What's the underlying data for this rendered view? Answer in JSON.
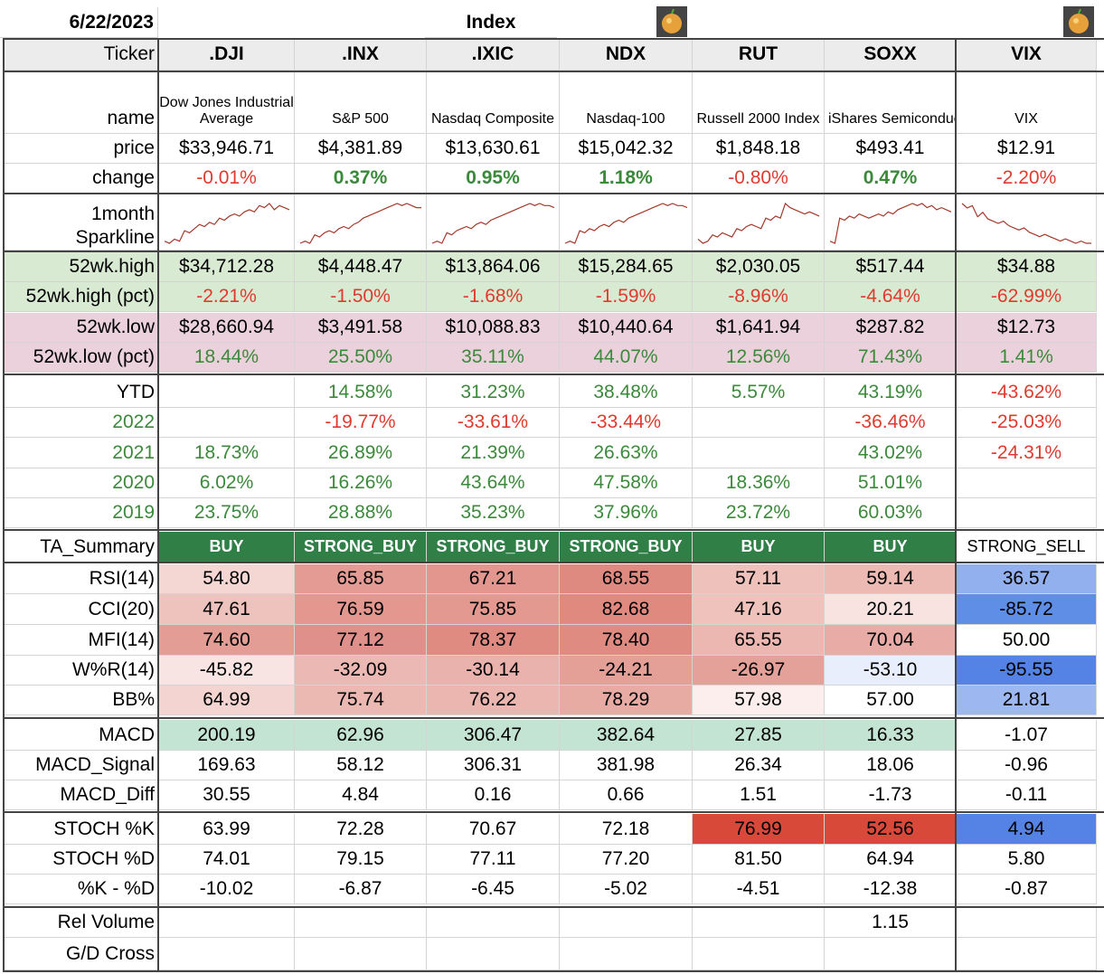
{
  "date": "6/22/2023",
  "section_title": "Index",
  "row_labels": {
    "ticker": "Ticker",
    "name": "name",
    "price": "price",
    "change": "change",
    "spark": [
      "1month",
      "Sparkline"
    ],
    "high": "52wk.high",
    "high_pct": "52wk.high (pct)",
    "low": "52wk.low",
    "low_pct": "52wk.low (pct)",
    "ytd": "YTD",
    "y2022": "2022",
    "y2021": "2021",
    "y2020": "2020",
    "y2019": "2019",
    "ta": "TA_Summary",
    "rsi": "RSI(14)",
    "cci": "CCI(20)",
    "mfi": "MFI(14)",
    "wr": "W%R(14)",
    "bb": "BB%",
    "macd": "MACD",
    "macd_signal": "MACD_Signal",
    "macd_diff": "MACD_Diff",
    "stoch_k": "STOCH %K",
    "stoch_d": "STOCH %D",
    "kd": "%K - %D",
    "relvol": "Rel Volume",
    "gd": "G/D Cross"
  },
  "tickers": [
    {
      "ticker": ".DJI",
      "name": "Dow Jones Industrial Average",
      "price": "$33,946.71",
      "change": "-0.01%",
      "high": "$34,712.28",
      "high_pct": "-2.21%",
      "low": "$28,660.94",
      "low_pct": "18.44%",
      "ytd": "",
      "y2022": "",
      "y2021": "18.73%",
      "y2020": "6.02%",
      "y2019": "23.75%",
      "ta": "BUY",
      "rsi": "54.80",
      "cci": "47.61",
      "mfi": "74.60",
      "wr": "-45.82",
      "bb": "64.99",
      "macd": "200.19",
      "macd_signal": "169.63",
      "macd_diff": "30.55",
      "stoch_k": "63.99",
      "stoch_d": "74.01",
      "kd": "-10.02",
      "relvol": "",
      "gd": "",
      "spark": [
        3,
        2,
        4,
        3,
        8,
        7,
        9,
        11,
        10,
        12,
        11,
        14,
        13,
        15,
        16,
        15,
        17,
        18,
        17,
        20,
        19,
        21,
        18,
        20,
        19,
        18
      ]
    },
    {
      "ticker": ".INX",
      "name": "S&P 500",
      "price": "$4,381.89",
      "change": "0.37%",
      "high": "$4,448.47",
      "high_pct": "-1.50%",
      "low": "$3,491.58",
      "low_pct": "25.50%",
      "ytd": "14.58%",
      "y2022": "-19.77%",
      "y2021": "26.89%",
      "y2020": "16.26%",
      "y2019": "28.88%",
      "ta": "STRONG_BUY",
      "rsi": "65.85",
      "cci": "76.59",
      "mfi": "77.12",
      "wr": "-32.09",
      "bb": "75.74",
      "macd": "62.96",
      "macd_signal": "58.12",
      "macd_diff": "4.84",
      "stoch_k": "72.28",
      "stoch_d": "79.15",
      "kd": "-6.87",
      "relvol": "",
      "gd": "",
      "spark": [
        2,
        3,
        2,
        6,
        5,
        7,
        8,
        7,
        9,
        10,
        9,
        11,
        12,
        14,
        15,
        16,
        17,
        18,
        19,
        20,
        21,
        20,
        21,
        20,
        19,
        19
      ]
    },
    {
      "ticker": ".IXIC",
      "name": "Nasdaq Composite",
      "price": "$13,630.61",
      "change": "0.95%",
      "high": "$13,864.06",
      "high_pct": "-1.68%",
      "low": "$10,088.83",
      "low_pct": "35.11%",
      "ytd": "31.23%",
      "y2022": "-33.61%",
      "y2021": "21.39%",
      "y2020": "43.64%",
      "y2019": "35.23%",
      "ta": "STRONG_BUY",
      "rsi": "67.21",
      "cci": "75.85",
      "mfi": "78.37",
      "wr": "-30.14",
      "bb": "76.22",
      "macd": "306.47",
      "macd_signal": "306.31",
      "macd_diff": "0.16",
      "stoch_k": "70.67",
      "stoch_d": "77.11",
      "kd": "-6.45",
      "relvol": "",
      "gd": "",
      "spark": [
        2,
        3,
        2,
        7,
        6,
        8,
        9,
        10,
        9,
        11,
        12,
        11,
        13,
        14,
        15,
        16,
        17,
        18,
        19,
        20,
        21,
        20,
        21,
        20,
        20,
        19
      ]
    },
    {
      "ticker": "NDX",
      "name": "Nasdaq-100",
      "price": "$15,042.32",
      "change": "1.18%",
      "high": "$15,284.65",
      "high_pct": "-1.59%",
      "low": "$10,440.64",
      "low_pct": "44.07%",
      "ytd": "38.48%",
      "y2022": "-33.44%",
      "y2021": "26.63%",
      "y2020": "47.58%",
      "y2019": "37.96%",
      "ta": "STRONG_BUY",
      "rsi": "68.55",
      "cci": "82.68",
      "mfi": "78.40",
      "wr": "-24.21",
      "bb": "78.29",
      "macd": "382.64",
      "macd_signal": "381.98",
      "macd_diff": "0.66",
      "stoch_k": "72.18",
      "stoch_d": "77.20",
      "kd": "-5.02",
      "relvol": "",
      "gd": "",
      "spark": [
        2,
        3,
        2,
        8,
        7,
        9,
        8,
        10,
        11,
        10,
        12,
        13,
        12,
        14,
        15,
        16,
        17,
        18,
        19,
        20,
        21,
        20,
        21,
        20,
        20,
        19
      ]
    },
    {
      "ticker": "RUT",
      "name": "Russell 2000 Index",
      "price": "$1,848.18",
      "change": "-0.80%",
      "high": "$2,030.05",
      "high_pct": "-8.96%",
      "low": "$1,641.94",
      "low_pct": "12.56%",
      "ytd": "5.57%",
      "y2022": "",
      "y2021": "",
      "y2020": "18.36%",
      "y2019": "23.72%",
      "ta": "BUY",
      "rsi": "57.11",
      "cci": "47.16",
      "mfi": "65.55",
      "wr": "-26.97",
      "bb": "57.98",
      "macd": "27.85",
      "macd_signal": "26.34",
      "macd_diff": "1.51",
      "stoch_k": "76.99",
      "stoch_d": "81.50",
      "kd": "-4.51",
      "relvol": "",
      "gd": "",
      "spark": [
        4,
        2,
        3,
        6,
        5,
        7,
        6,
        5,
        9,
        8,
        10,
        11,
        10,
        9,
        14,
        13,
        15,
        14,
        21,
        19,
        18,
        17,
        16,
        17,
        16,
        15
      ]
    },
    {
      "ticker": "SOXX",
      "name": "iShares Semiconductor",
      "price": "$493.41",
      "change": "0.47%",
      "high": "$517.44",
      "high_pct": "-4.64%",
      "low": "$287.82",
      "low_pct": "71.43%",
      "ytd": "43.19%",
      "y2022": "-36.46%",
      "y2021": "43.02%",
      "y2020": "51.01%",
      "y2019": "60.03%",
      "ta": "BUY",
      "rsi": "59.14",
      "cci": "20.21",
      "mfi": "70.04",
      "wr": "-53.10",
      "bb": "57.00",
      "macd": "16.33",
      "macd_signal": "18.06",
      "macd_diff": "-1.73",
      "stoch_k": "52.56",
      "stoch_d": "64.94",
      "kd": "-12.38",
      "relvol": "1.15",
      "gd": "",
      "spark": [
        3,
        2,
        14,
        13,
        15,
        14,
        16,
        15,
        14,
        15,
        16,
        15,
        17,
        16,
        18,
        19,
        20,
        21,
        20,
        21,
        19,
        20,
        18,
        19,
        18,
        17
      ]
    },
    {
      "ticker": "VIX",
      "name": "VIX",
      "price": "$12.91",
      "change": "-2.20%",
      "high": "$34.88",
      "high_pct": "-62.99%",
      "low": "$12.73",
      "low_pct": "1.41%",
      "ytd": "-43.62%",
      "y2022": "-25.03%",
      "y2021": "-24.31%",
      "y2020": "",
      "y2019": "",
      "ta": "STRONG_SELL",
      "rsi": "36.57",
      "cci": "-85.72",
      "mfi": "50.00",
      "wr": "-95.55",
      "bb": "21.81",
      "macd": "-1.07",
      "macd_signal": "-0.96",
      "macd_diff": "-0.11",
      "stoch_k": "4.94",
      "stoch_d": "5.80",
      "kd": "-0.87",
      "relvol": "",
      "gd": "",
      "spark": [
        20,
        18,
        19,
        14,
        16,
        13,
        12,
        11,
        12,
        10,
        9,
        8,
        9,
        7,
        6,
        5,
        6,
        5,
        4,
        3,
        4,
        3,
        2,
        3,
        2,
        2
      ]
    }
  ],
  "colors": {
    "header_bg": "#ececec",
    "high_band": "#d9ead3",
    "low_band": "#ead1dc",
    "ta_buy": "#2f7f47",
    "positive": "#3a8a3a",
    "negative": "#e03a2e",
    "macd_band": "#c3e3d3",
    "sparkline": "#a33a2a"
  },
  "heat": {
    "rsi": [
      "#f4d6d3",
      "#e39b93",
      "#e2968d",
      "#df8a81",
      "#efc1bb",
      "#ecbab3",
      "#93b0ee"
    ],
    "cci": [
      "#efc3bd",
      "#e3978f",
      "#e39990",
      "#e0897f",
      "#efc2bc",
      "#f8e3e1",
      "#5f8ee6"
    ],
    "mfi": [
      "#e39d94",
      "#e0908a",
      "#df8b81",
      "#df8b82",
      "#ecb7b1",
      "#e8aba5",
      "#ffffff"
    ],
    "wr": [
      "#f8e5e3",
      "#ebb8b3",
      "#eab2ad",
      "#e49f97",
      "#e4a199",
      "#e8eefb",
      "#5583e5"
    ],
    "bb": [
      "#f4d4d0",
      "#ecb8b2",
      "#ebb5b0",
      "#e8aba4",
      "#fbeeec",
      "#ffffff",
      "#9db8f0"
    ],
    "macd": [
      "#c3e3d3",
      "#c3e3d3",
      "#c3e3d3",
      "#c3e3d3",
      "#c3e3d3",
      "#c3e3d3",
      "#ffffff"
    ],
    "stoch_k": [
      "#ffffff",
      "#ffffff",
      "#ffffff",
      "#ffffff",
      "#d9493a",
      "#d9493a",
      "#5583e5"
    ]
  }
}
